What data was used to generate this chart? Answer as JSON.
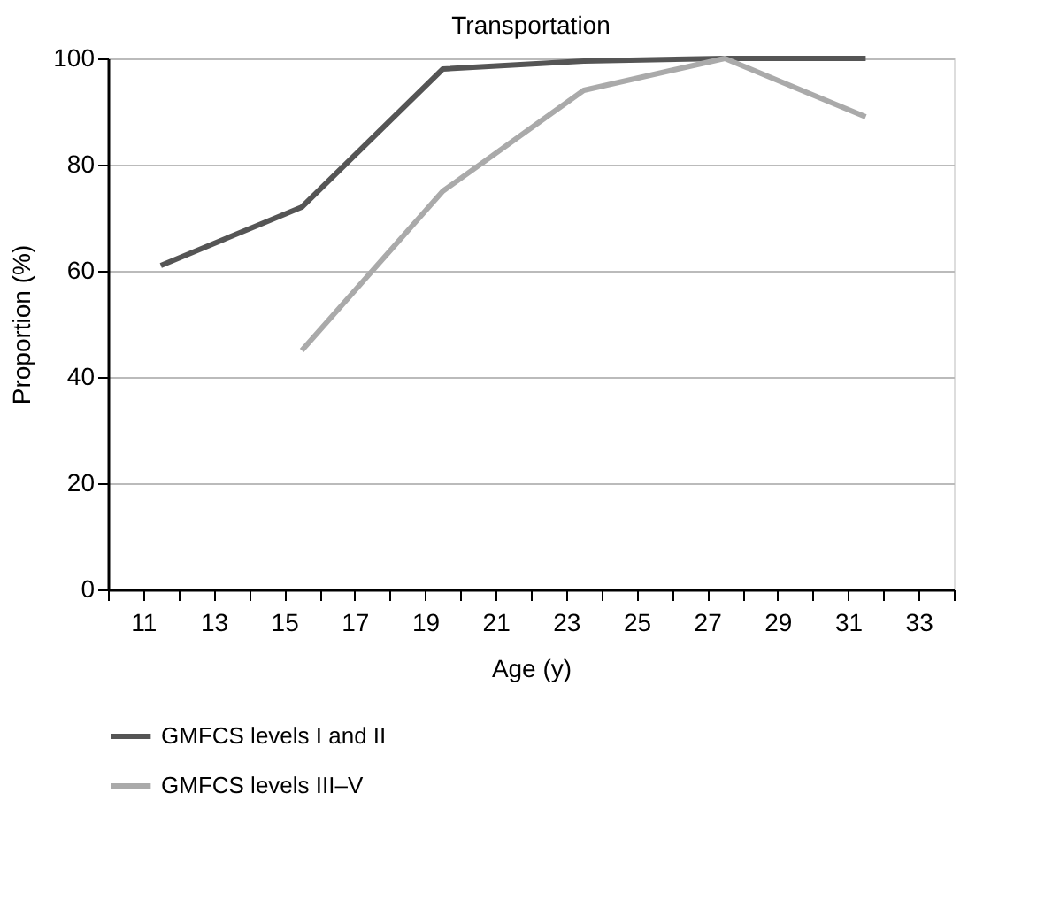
{
  "chart_data": {
    "type": "line",
    "title": "Transportation",
    "xlabel": "Age (y)",
    "ylabel": "Proportion (%)",
    "x": [
      11.5,
      15.5,
      19.5,
      23.5,
      27.5,
      31.5
    ],
    "series": [
      {
        "name": "GMFCS levels I and II",
        "color": "#555555",
        "values": [
          61,
          72,
          98,
          99.5,
          100,
          100
        ]
      },
      {
        "name": "GMFCS levels III–V",
        "color": "#aaaaaa",
        "values": [
          null,
          45,
          75,
          94,
          100,
          89
        ]
      }
    ],
    "xlim": [
      10,
      34
    ],
    "xticks": [
      {
        "value": 10,
        "label": null
      },
      11,
      {
        "value": 12,
        "label": null
      },
      13,
      {
        "value": 14,
        "label": null
      },
      15,
      {
        "value": 16,
        "label": null
      },
      17,
      {
        "value": 18,
        "label": null
      },
      19,
      {
        "value": 20,
        "label": null
      },
      21,
      {
        "value": 22,
        "label": null
      },
      23,
      {
        "value": 24,
        "label": null
      },
      25,
      {
        "value": 26,
        "label": null
      },
      27,
      {
        "value": 28,
        "label": null
      },
      29,
      {
        "value": 30,
        "label": null
      },
      31,
      {
        "value": 32,
        "label": null
      },
      33,
      {
        "value": 34,
        "label": null
      }
    ],
    "ylim": [
      0,
      100
    ],
    "yticks": [
      0,
      20,
      40,
      60,
      80,
      100
    ],
    "grid": "y",
    "legend": "bottom",
    "marker": "none",
    "line_style": "solid"
  }
}
